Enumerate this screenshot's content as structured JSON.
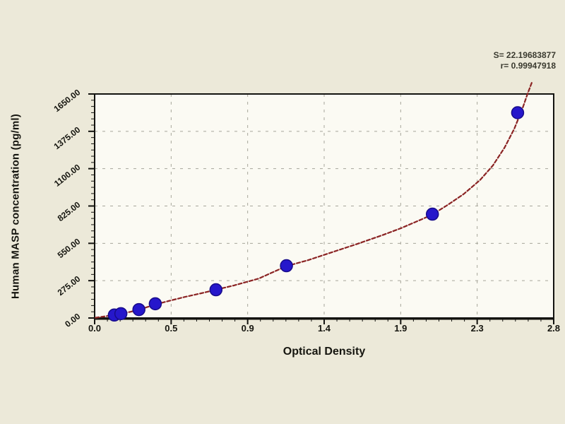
{
  "window": {
    "background": "#ece9d9"
  },
  "chart_data": {
    "type": "scatter",
    "title": "",
    "xlabel": "Optical Density",
    "ylabel": "Human MASP concentration (pg/ml)",
    "xlim": [
      0,
      2.8
    ],
    "ylim": [
      0,
      1650
    ],
    "x_tick_values": [
      0,
      0.4667,
      0.9333,
      1.4,
      1.8667,
      2.3333,
      2.8
    ],
    "x_tick_labels": [
      "0.0",
      "0.5",
      "0.9",
      "1.4",
      "1.9",
      "2.3",
      "2.8"
    ],
    "y_tick_values": [
      0,
      275,
      550,
      825,
      1100,
      1375,
      1650
    ],
    "y_tick_labels": [
      "0.00",
      "275.00",
      "550.00",
      "825.00",
      "1100.00",
      "1375.00",
      "1650.00"
    ],
    "grid": {
      "style": "dashed",
      "color": "#a7a69b",
      "which": "major-only"
    },
    "legend": "none",
    "annotations": [
      {
        "id": "stat_s",
        "text": "S= 22.19683877"
      },
      {
        "id": "stat_r",
        "text": "r= 0.99947918"
      }
    ],
    "series": [
      {
        "name": "standard-points",
        "type": "scatter",
        "marker": "circle",
        "color": "#2617cb",
        "edge_color": "#170b8a",
        "x": [
          0.12,
          0.16,
          0.27,
          0.37,
          0.74,
          1.17,
          2.06,
          2.58
        ],
        "y": [
          22,
          32,
          62,
          105,
          208,
          385,
          765,
          1512
        ]
      },
      {
        "name": "fit-curve",
        "type": "line",
        "style": "dashed",
        "color": "#8b2424",
        "x": [
          0.005,
          0.05,
          0.12,
          0.16,
          0.22,
          0.27,
          0.32,
          0.37,
          0.45,
          0.55,
          0.65,
          0.74,
          0.85,
          1.0,
          1.17,
          1.3,
          1.45,
          1.6,
          1.75,
          1.87,
          2.0,
          2.06,
          2.15,
          2.25,
          2.35,
          2.43,
          2.5,
          2.56,
          2.61,
          2.64,
          2.67
        ],
        "y": [
          2,
          10,
          22,
          32,
          46,
          62,
          80,
          100,
          125,
          155,
          182,
          208,
          240,
          290,
          382,
          425,
          485,
          545,
          608,
          662,
          730,
          762,
          830,
          912,
          1015,
          1125,
          1255,
          1395,
          1545,
          1650,
          1745
        ]
      }
    ],
    "colors": {
      "background": "#ece9d9",
      "plot_bg": "#fbfaf3",
      "frame": "#131310",
      "grid": "#a7a69b",
      "point": "#2617cb",
      "curve": "#8b2424",
      "text": "#15150f"
    }
  }
}
